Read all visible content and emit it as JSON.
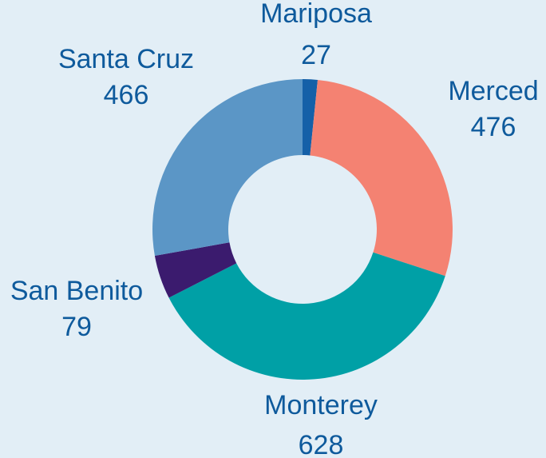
{
  "chart_data": {
    "type": "pie",
    "style": "donut",
    "title": "",
    "slices": [
      {
        "label": "Mariposa",
        "value": 27,
        "color": "#1560a8"
      },
      {
        "label": "Merced",
        "value": 476,
        "color": "#f48272"
      },
      {
        "label": "Monterey",
        "value": 628,
        "color": "#00a0a6"
      },
      {
        "label": "San Benito",
        "value": 79,
        "color": "#3b1b6e"
      },
      {
        "label": "Santa Cruz",
        "value": 466,
        "color": "#5b96c6"
      }
    ],
    "label_color": "#0e5a9c",
    "background": "#e2eef6"
  }
}
